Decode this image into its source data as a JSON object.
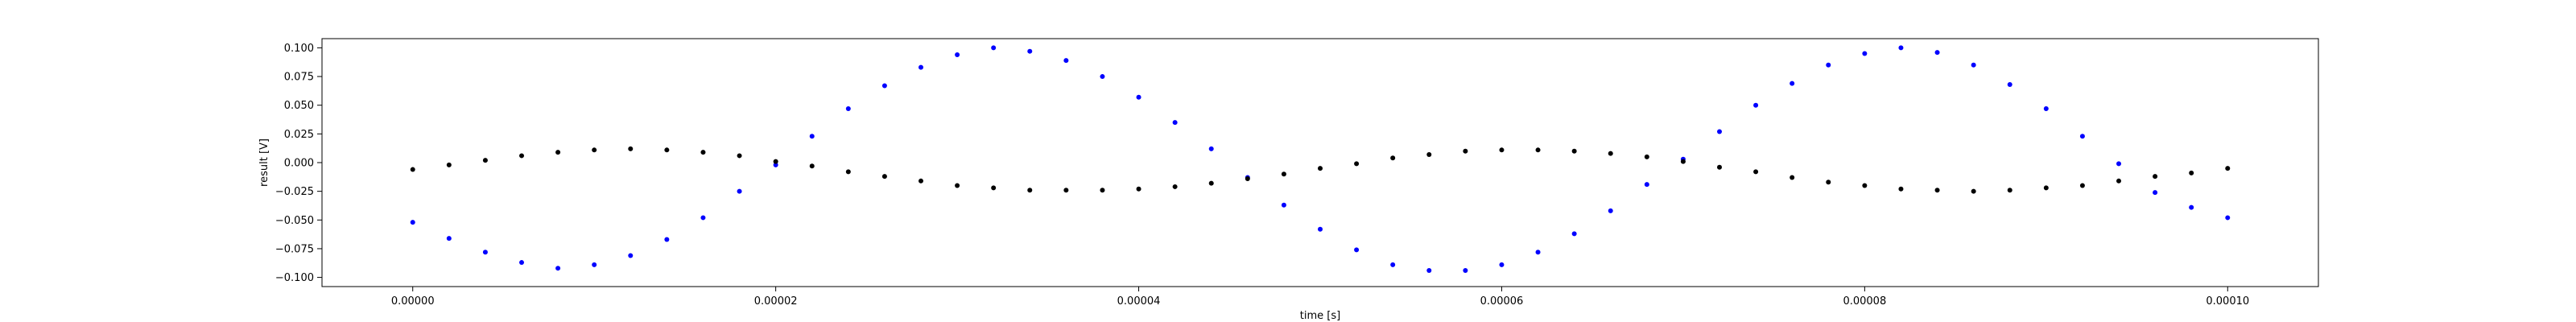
{
  "chart_data": {
    "type": "scatter",
    "title": "",
    "xlabel": "time [s]",
    "ylabel": "result [V]",
    "xlim": [
      -5e-06,
      0.000105
    ],
    "ylim": [
      -0.108,
      0.108
    ],
    "grid": false,
    "x_ticks": [
      0.0,
      2e-05,
      4e-05,
      6e-05,
      8e-05,
      0.0001
    ],
    "x_tick_labels": [
      "0.00000",
      "0.00002",
      "0.00004",
      "0.00006",
      "0.00008",
      "0.00010"
    ],
    "y_ticks": [
      -0.1,
      -0.075,
      -0.05,
      -0.025,
      0.0,
      0.025,
      0.05,
      0.075,
      0.1
    ],
    "y_tick_labels": [
      "−0.100",
      "−0.075",
      "−0.050",
      "−0.025",
      "0.000",
      "0.025",
      "0.050",
      "0.075",
      "0.100"
    ],
    "series": [
      {
        "color": "#0000ff",
        "x": [
          0.0,
          2e-06,
          4e-06,
          6e-06,
          8e-06,
          1e-05,
          1.2e-05,
          1.4e-05,
          1.6e-05,
          1.8e-05,
          2e-05,
          2.2e-05,
          2.4e-05,
          2.6e-05,
          2.8e-05,
          3e-05,
          3.2e-05,
          3.4e-05,
          3.6e-05,
          3.8e-05,
          4e-05,
          4.2e-05,
          4.4e-05,
          4.6e-05,
          4.8e-05,
          5e-05,
          5.2e-05,
          5.4e-05,
          5.6e-05,
          5.8e-05,
          6e-05,
          6.2e-05,
          6.4e-05,
          6.6e-05,
          6.8e-05,
          7e-05,
          7.2e-05,
          7.4e-05,
          7.6e-05,
          7.8e-05,
          8e-05,
          8.2e-05,
          8.4e-05,
          8.6e-05,
          8.8e-05,
          9e-05,
          9.2e-05,
          9.4e-05,
          9.6e-05,
          9.8e-05,
          0.0001
        ],
        "y": [
          -0.052,
          -0.066,
          -0.078,
          -0.087,
          -0.092,
          -0.089,
          -0.081,
          -0.067,
          -0.048,
          -0.025,
          -0.002,
          0.023,
          0.047,
          0.067,
          0.083,
          0.094,
          0.1,
          0.097,
          0.089,
          0.075,
          0.057,
          0.035,
          0.012,
          -0.013,
          -0.037,
          -0.058,
          -0.076,
          -0.089,
          -0.094,
          -0.094,
          -0.089,
          -0.078,
          -0.062,
          -0.042,
          -0.019,
          0.003,
          0.027,
          0.05,
          0.069,
          0.085,
          0.095,
          0.1,
          0.096,
          0.085,
          0.068,
          0.047,
          0.023,
          -0.001,
          -0.026,
          -0.039,
          -0.048
        ]
      },
      {
        "color": "#000000",
        "x": [
          0.0,
          2e-06,
          4e-06,
          6e-06,
          8e-06,
          1e-05,
          1.2e-05,
          1.4e-05,
          1.6e-05,
          1.8e-05,
          2e-05,
          2.2e-05,
          2.4e-05,
          2.6e-05,
          2.8e-05,
          3e-05,
          3.2e-05,
          3.4e-05,
          3.6e-05,
          3.8e-05,
          4e-05,
          4.2e-05,
          4.4e-05,
          4.6e-05,
          4.8e-05,
          5e-05,
          5.2e-05,
          5.4e-05,
          5.6e-05,
          5.8e-05,
          6e-05,
          6.2e-05,
          6.4e-05,
          6.6e-05,
          6.8e-05,
          7e-05,
          7.2e-05,
          7.4e-05,
          7.6e-05,
          7.8e-05,
          8e-05,
          8.2e-05,
          8.4e-05,
          8.6e-05,
          8.8e-05,
          9e-05,
          9.2e-05,
          9.4e-05,
          9.6e-05,
          9.8e-05,
          0.0001
        ],
        "y": [
          -0.006,
          -0.002,
          0.002,
          0.006,
          0.009,
          0.011,
          0.012,
          0.011,
          0.009,
          0.006,
          0.001,
          -0.003,
          -0.008,
          -0.012,
          -0.016,
          -0.02,
          -0.022,
          -0.024,
          -0.024,
          -0.024,
          -0.023,
          -0.021,
          -0.018,
          -0.014,
          -0.01,
          -0.005,
          -0.001,
          0.004,
          0.007,
          0.01,
          0.011,
          0.011,
          0.01,
          0.008,
          0.005,
          0.001,
          -0.004,
          -0.008,
          -0.013,
          -0.017,
          -0.02,
          -0.023,
          -0.024,
          -0.025,
          -0.024,
          -0.022,
          -0.02,
          -0.016,
          -0.012,
          -0.009,
          -0.005
        ]
      }
    ]
  }
}
